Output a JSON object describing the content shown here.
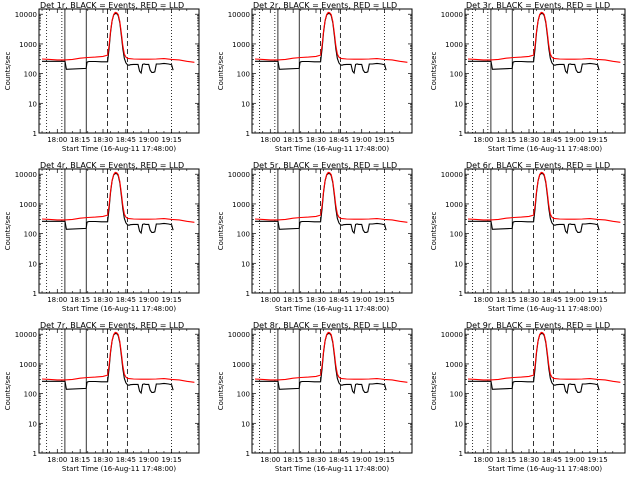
{
  "chart_data": {
    "type": "line",
    "layout": "3x3 grid",
    "xlabel": "Start Time (16-Aug-11 17:48:00)",
    "ylabel": "Counts/sec",
    "x_ticks": [
      "18:00",
      "18:15",
      "18:30",
      "18:45",
      "19:00",
      "19:15"
    ],
    "x_tick_minutes": [
      0,
      15,
      30,
      45,
      60,
      75
    ],
    "x_range_minutes": [
      -12,
      93
    ],
    "y_scale": "log",
    "y_ticks": [
      "1",
      "10",
      "100",
      "1000",
      "10000"
    ],
    "ylim": [
      1,
      15000
    ],
    "grid": false,
    "series_colors": {
      "events": "#000000",
      "lld": "#ff0000"
    },
    "marker_lines_minutes": {
      "dotted": [
        -7,
        3,
        75
      ],
      "solid": [
        5,
        19
      ],
      "dashed": [
        33,
        46
      ]
    },
    "series": [
      {
        "key": "events",
        "x": [
          -10,
          4.9,
          5,
          6,
          19,
          19.5,
          20,
          21,
          25,
          29,
          32,
          33,
          34,
          35,
          36,
          37,
          38,
          39,
          40,
          41,
          42,
          43,
          44,
          45,
          46,
          47,
          48,
          50,
          53,
          54,
          55,
          56,
          57,
          58,
          60,
          61,
          62,
          63,
          64,
          65,
          66,
          67,
          70,
          73,
          75,
          76
        ],
        "y": [
          260,
          260,
          270,
          140,
          150,
          240,
          250,
          255,
          255,
          250,
          250,
          250,
          700,
          2500,
          6000,
          9500,
          10500,
          10500,
          9000,
          5200,
          2000,
          700,
          330,
          230,
          200,
          190,
          200,
          205,
          205,
          120,
          105,
          205,
          210,
          205,
          205,
          130,
          110,
          110,
          115,
          210,
          210,
          210,
          220,
          210,
          200,
          130
        ]
      },
      {
        "key": "lld",
        "x": [
          -10,
          -5,
          0,
          5,
          10,
          15,
          20,
          25,
          30,
          33,
          34,
          35,
          36,
          37,
          38,
          39,
          40,
          41,
          42,
          43,
          44,
          45,
          46,
          47,
          50,
          55,
          60,
          65,
          70,
          75,
          80,
          85,
          90
        ],
        "y": [
          310,
          300,
          290,
          290,
          300,
          330,
          350,
          360,
          380,
          420,
          900,
          2800,
          6200,
          9800,
          11500,
          11200,
          9800,
          5800,
          2400,
          900,
          460,
          360,
          330,
          320,
          310,
          305,
          305,
          310,
          320,
          300,
          290,
          260,
          240
        ]
      }
    ],
    "panels": [
      {
        "title": "Det 1r, BLACK = Events, RED = LLD"
      },
      {
        "title": "Det 2r, BLACK = Events, RED = LLD"
      },
      {
        "title": "Det 3r, BLACK = Events, RED = LLD"
      },
      {
        "title": "Det 4r, BLACK = Events, RED = LLD"
      },
      {
        "title": "Det 5r, BLACK = Events, RED = LLD"
      },
      {
        "title": "Det 6r, BLACK = Events, RED = LLD"
      },
      {
        "title": "Det 7r, BLACK = Events, RED = LLD"
      },
      {
        "title": "Det 8r, BLACK = Events, RED = LLD"
      },
      {
        "title": "Det 9r, BLACK = Events, RED = LLD"
      }
    ]
  }
}
